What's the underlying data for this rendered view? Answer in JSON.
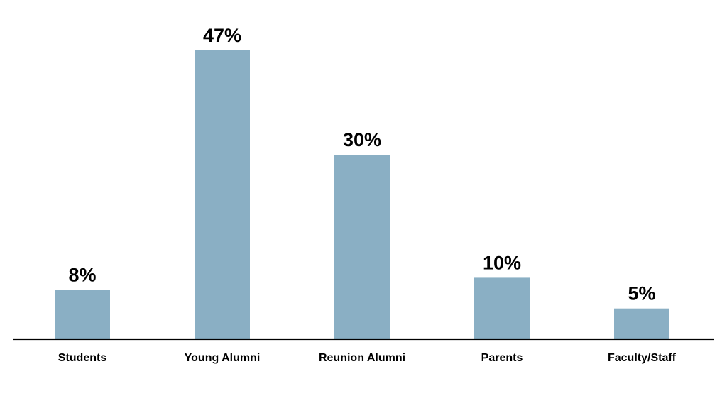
{
  "chart_data": {
    "type": "bar",
    "categories": [
      "Students",
      "Young Alumni",
      "Reunion Alumni",
      "Parents",
      "Faculty/Staff"
    ],
    "values": [
      8,
      47,
      30,
      10,
      5
    ],
    "value_labels": [
      "8%",
      "47%",
      "30%",
      "10%",
      "5%"
    ],
    "title": "",
    "xlabel": "",
    "ylabel": "",
    "ylim": [
      0,
      47
    ],
    "grid": false,
    "legend": "none",
    "bar_color": "#8aafc4",
    "axis_color": "#000000"
  }
}
